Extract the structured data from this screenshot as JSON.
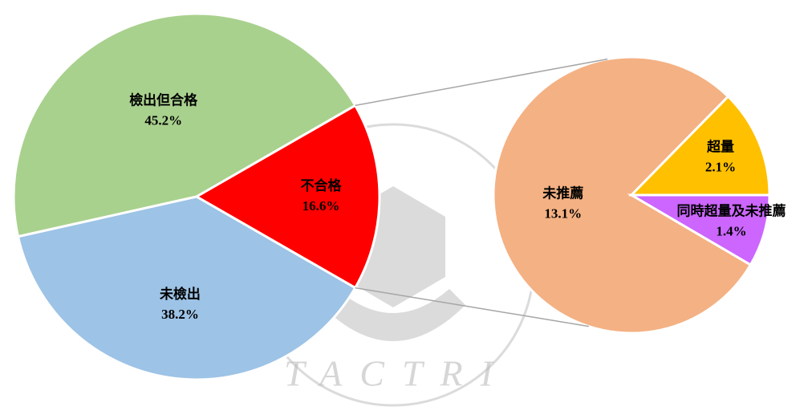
{
  "chart_data": [
    {
      "type": "pie",
      "categories": [
        "檢出但合格",
        "不合格",
        "未檢出"
      ],
      "values": [
        45.2,
        16.6,
        38.2
      ],
      "value_labels": [
        "45.2%",
        "16.6%",
        "38.2%"
      ],
      "colors": [
        "#a9d18e",
        "#ff0000",
        "#9dc3e6"
      ]
    },
    {
      "type": "pie",
      "categories": [
        "未推薦",
        "超量",
        "同時超量及未推薦"
      ],
      "values": [
        13.1,
        2.1,
        1.4
      ],
      "value_labels": [
        "13.1%",
        "2.1%",
        "1.4%"
      ],
      "colors": [
        "#f4b183",
        "#ffc000",
        "#cc66ff"
      ]
    }
  ],
  "watermark": "TACTRI"
}
